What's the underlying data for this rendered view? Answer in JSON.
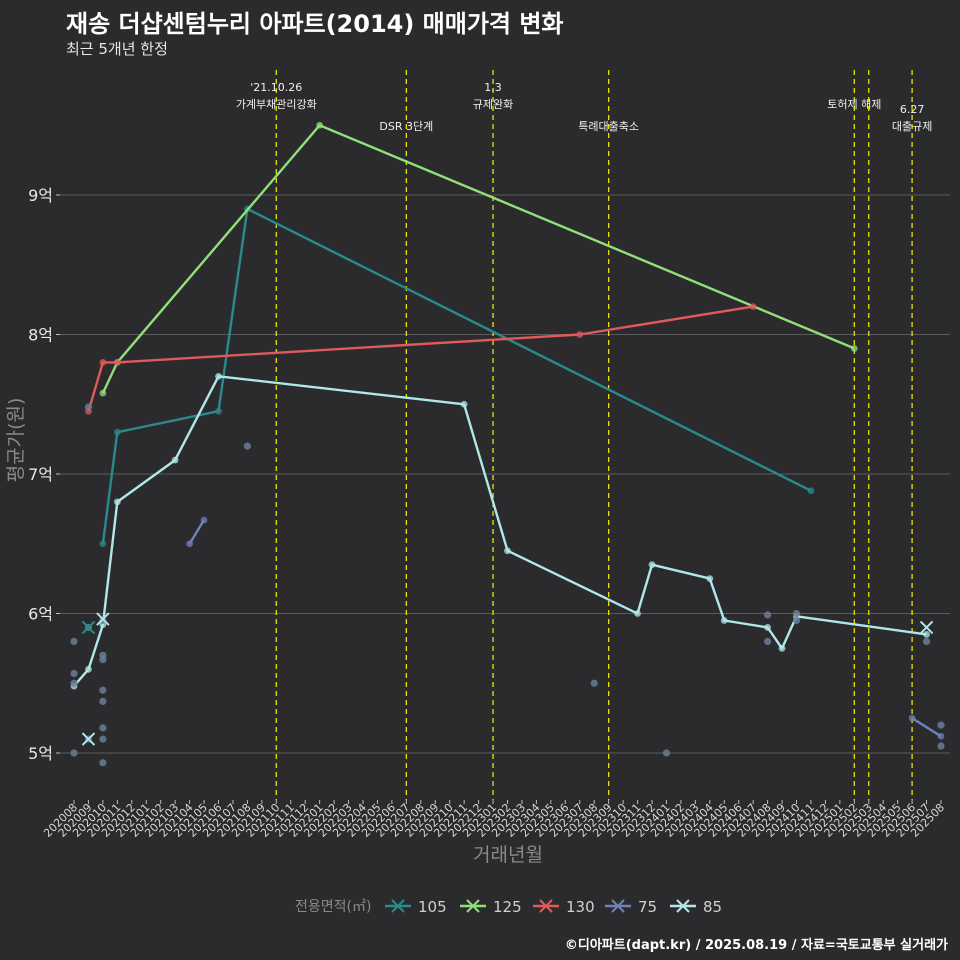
{
  "header": {
    "title": "재송 더샵센텀누리 아파트(2014) 매매가격 변화",
    "subtitle": "최근 5개년 한정"
  },
  "caption": "©디아파트(dapt.kr) / 2025.08.19 / 자료=국토교통부 실거래가",
  "colors": {
    "background": "#2b2b2d",
    "grid": "#5b5b5e",
    "event_line": "#e6e600",
    "s105": "#2a8a8c",
    "s125": "#90e07a",
    "s130": "#e05a5a",
    "s75": "#7082b8",
    "s85": "#b0e8ea",
    "scatter": "#6a7d96"
  },
  "chart_data": {
    "type": "line",
    "xlabel": "거래년월",
    "ylabel": "평균가(원)",
    "ylim": [
      4.7,
      9.95
    ],
    "y_ticks": [
      {
        "value": 5,
        "label": "5억"
      },
      {
        "value": 6,
        "label": "6억"
      },
      {
        "value": 7,
        "label": "7억"
      },
      {
        "value": 8,
        "label": "8억"
      },
      {
        "value": 9,
        "label": "9억"
      }
    ],
    "x_categories": [
      "202008",
      "202009",
      "202010",
      "202011",
      "202012",
      "202101",
      "202102",
      "202103",
      "202104",
      "202105",
      "202106",
      "202107",
      "202108",
      "202109",
      "202110",
      "202111",
      "202112",
      "202201",
      "202202",
      "202203",
      "202204",
      "202205",
      "202206",
      "202207",
      "202208",
      "202209",
      "202210",
      "202211",
      "202212",
      "202301",
      "202302",
      "202303",
      "202304",
      "202305",
      "202306",
      "202307",
      "202308",
      "202309",
      "202310",
      "202311",
      "202312",
      "202401",
      "202402",
      "202403",
      "202404",
      "202405",
      "202406",
      "202407",
      "202408",
      "202409",
      "202410",
      "202411",
      "202412",
      "202501",
      "202502",
      "202503",
      "202504",
      "202505",
      "202506",
      "202507",
      "202508"
    ],
    "legend": {
      "title": "전용면적(㎡)",
      "position": "bottom",
      "items": [
        "105",
        "125",
        "130",
        "75",
        "85"
      ]
    },
    "events": [
      {
        "x": 14.0,
        "label": "'21.10.26\n가계부채관리강화",
        "row": 0
      },
      {
        "x": 23.0,
        "label": "DSR 3단계",
        "row": 1
      },
      {
        "x": 29.0,
        "label": "1.3\n규제완화",
        "row": 0
      },
      {
        "x": 37.0,
        "label": "특례대출축소",
        "row": 1
      },
      {
        "x": 54.0,
        "label": "토허제 해제",
        "row": 0
      },
      {
        "x": 55.0,
        "label": "",
        "row": 0
      },
      {
        "x": 58.0,
        "label": "6.27\n대출규제",
        "row": 1
      }
    ],
    "series": [
      {
        "name": "105",
        "color_key": "s105",
        "points": [
          [
            2.0,
            6.5
          ],
          [
            3.0,
            7.3
          ],
          [
            10.0,
            7.45
          ],
          [
            12.0,
            8.9
          ],
          [
            51.0,
            6.88
          ]
        ]
      },
      {
        "name": "125",
        "color_key": "s125",
        "points": [
          [
            2.0,
            7.58
          ],
          [
            3.0,
            7.8
          ],
          [
            17.0,
            9.5
          ],
          [
            54.0,
            7.9
          ]
        ]
      },
      {
        "name": "130",
        "color_key": "s130",
        "points": [
          [
            1.0,
            7.45
          ],
          [
            2.0,
            7.8
          ],
          [
            3.0,
            7.8
          ],
          [
            35.0,
            8.0
          ],
          [
            47.0,
            8.2
          ]
        ]
      },
      {
        "name": "75",
        "color_key": "s75",
        "points": [
          [
            8.0,
            6.5
          ],
          [
            9.0,
            6.67
          ]
        ]
      },
      {
        "name": "75",
        "color_key": "s75",
        "points": [
          [
            58.0,
            5.25
          ],
          [
            60.0,
            5.12
          ]
        ]
      },
      {
        "name": "85",
        "color_key": "s85",
        "points": [
          [
            0.0,
            5.48
          ],
          [
            1.0,
            5.6
          ],
          [
            2.0,
            5.92
          ],
          [
            3.0,
            6.8
          ],
          [
            7.0,
            7.1
          ],
          [
            10.0,
            7.7
          ],
          [
            27.0,
            7.5
          ],
          [
            30.0,
            6.45
          ],
          [
            39.0,
            6.0
          ],
          [
            40.0,
            6.35
          ],
          [
            44.0,
            6.25
          ],
          [
            45.0,
            5.95
          ],
          [
            48.0,
            5.9
          ],
          [
            49.0,
            5.75
          ],
          [
            50.0,
            5.98
          ],
          [
            59.0,
            5.85
          ]
        ]
      }
    ],
    "scatter_points": [
      [
        0.0,
        5.8
      ],
      [
        0.0,
        5.57
      ],
      [
        0.0,
        5.5
      ],
      [
        0.0,
        5.0
      ],
      [
        1.0,
        5.9
      ],
      [
        1.0,
        5.1
      ],
      [
        1.0,
        7.48
      ],
      [
        2.0,
        5.7
      ],
      [
        2.0,
        5.67
      ],
      [
        2.0,
        5.45
      ],
      [
        2.0,
        5.37
      ],
      [
        2.0,
        5.18
      ],
      [
        2.0,
        5.1
      ],
      [
        2.0,
        4.93
      ],
      [
        2.0,
        5.95
      ],
      [
        12.0,
        7.2
      ],
      [
        36.0,
        5.5
      ],
      [
        41.0,
        5.0
      ],
      [
        48.0,
        5.99
      ],
      [
        48.0,
        5.8
      ],
      [
        50.0,
        6.0
      ],
      [
        50.0,
        5.95
      ],
      [
        59.0,
        5.8
      ],
      [
        60.0,
        5.2
      ],
      [
        60.0,
        5.05
      ]
    ],
    "cross_markers": [
      {
        "x": 1.0,
        "y": 5.9,
        "color_key": "s105"
      },
      {
        "x": 1.0,
        "y": 5.1,
        "color_key": "s85"
      },
      {
        "x": 2.0,
        "y": 5.96,
        "color_key": "s85"
      },
      {
        "x": 59.0,
        "y": 5.9,
        "color_key": "s85"
      }
    ]
  }
}
